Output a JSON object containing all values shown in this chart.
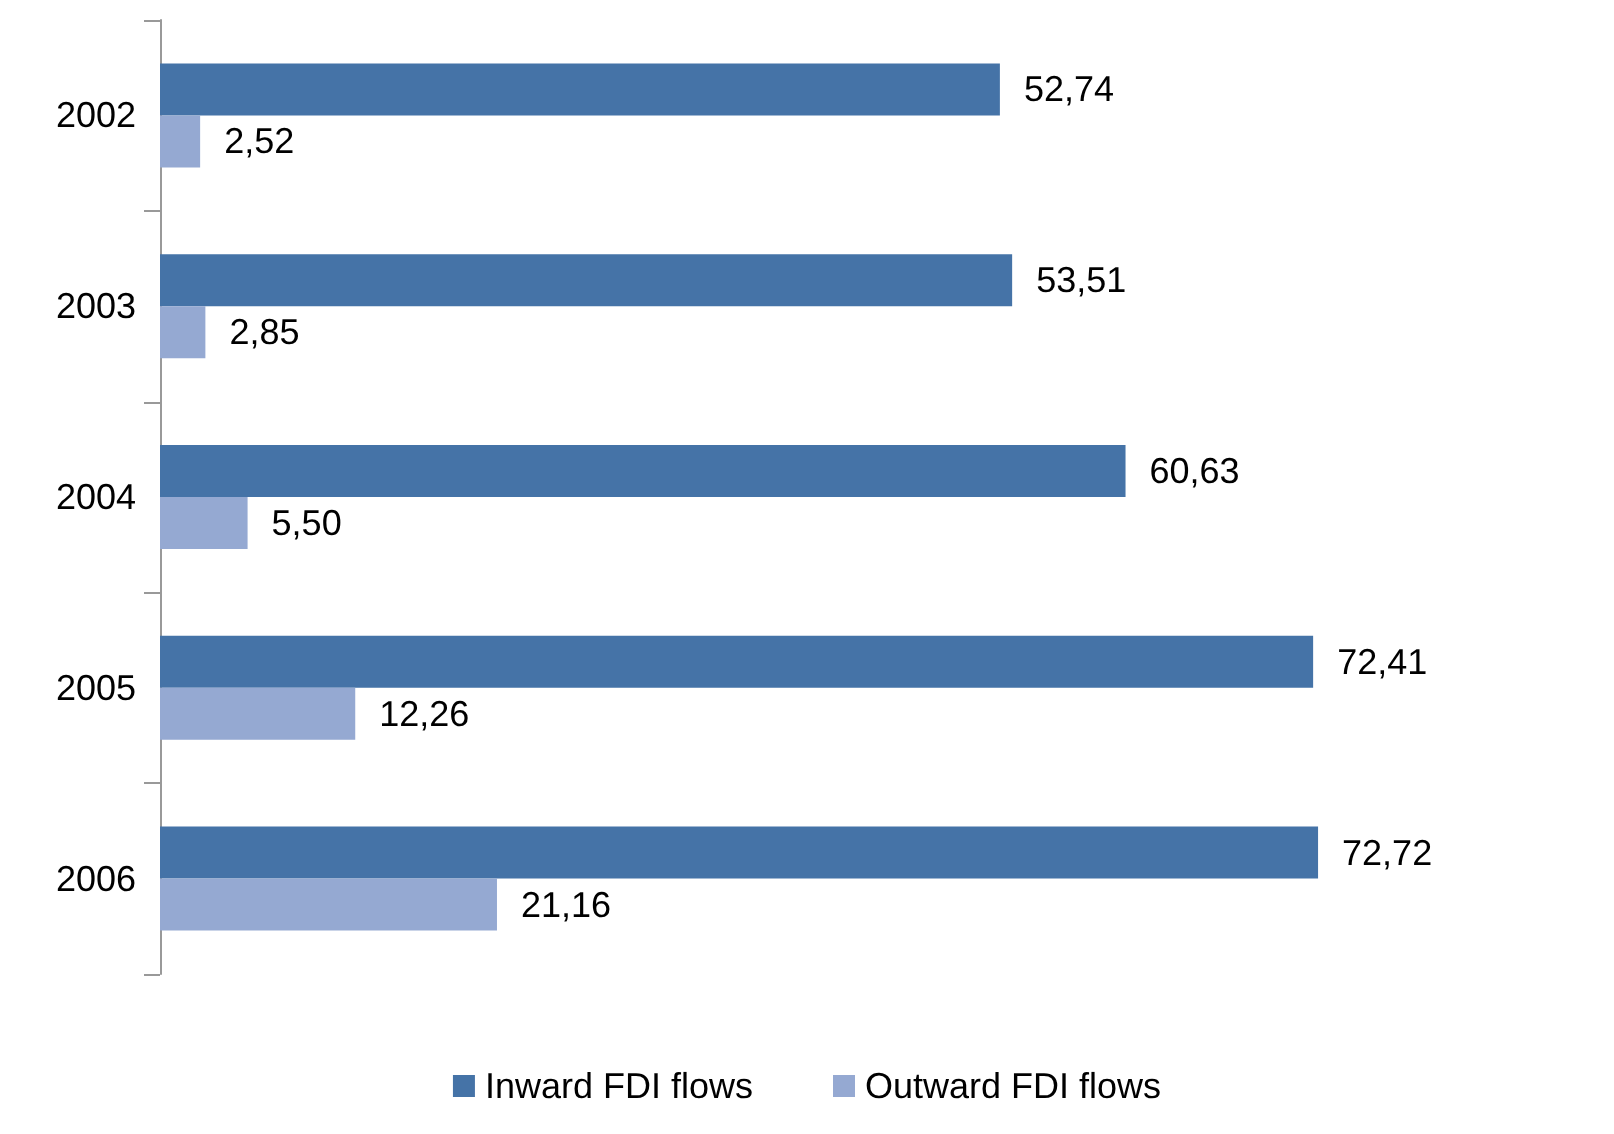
{
  "chart_data": {
    "type": "bar",
    "orientation": "horizontal",
    "categories": [
      "2002",
      "2003",
      "2004",
      "2005",
      "2006"
    ],
    "series": [
      {
        "name": "Inward FDI flows",
        "color": "#4573a7",
        "values": [
          52.74,
          53.51,
          60.63,
          72.41,
          72.72
        ],
        "value_labels": [
          "52,74",
          "53,51",
          "60,63",
          "72,41",
          "72,72"
        ]
      },
      {
        "name": "Outward FDI flows",
        "color": "#95a9d2",
        "values": [
          2.52,
          2.85,
          5.5,
          12.26,
          21.16
        ],
        "value_labels": [
          "2,52",
          "2,85",
          "5,50",
          "12,26",
          "21,16"
        ]
      }
    ],
    "legend": "bottom"
  }
}
